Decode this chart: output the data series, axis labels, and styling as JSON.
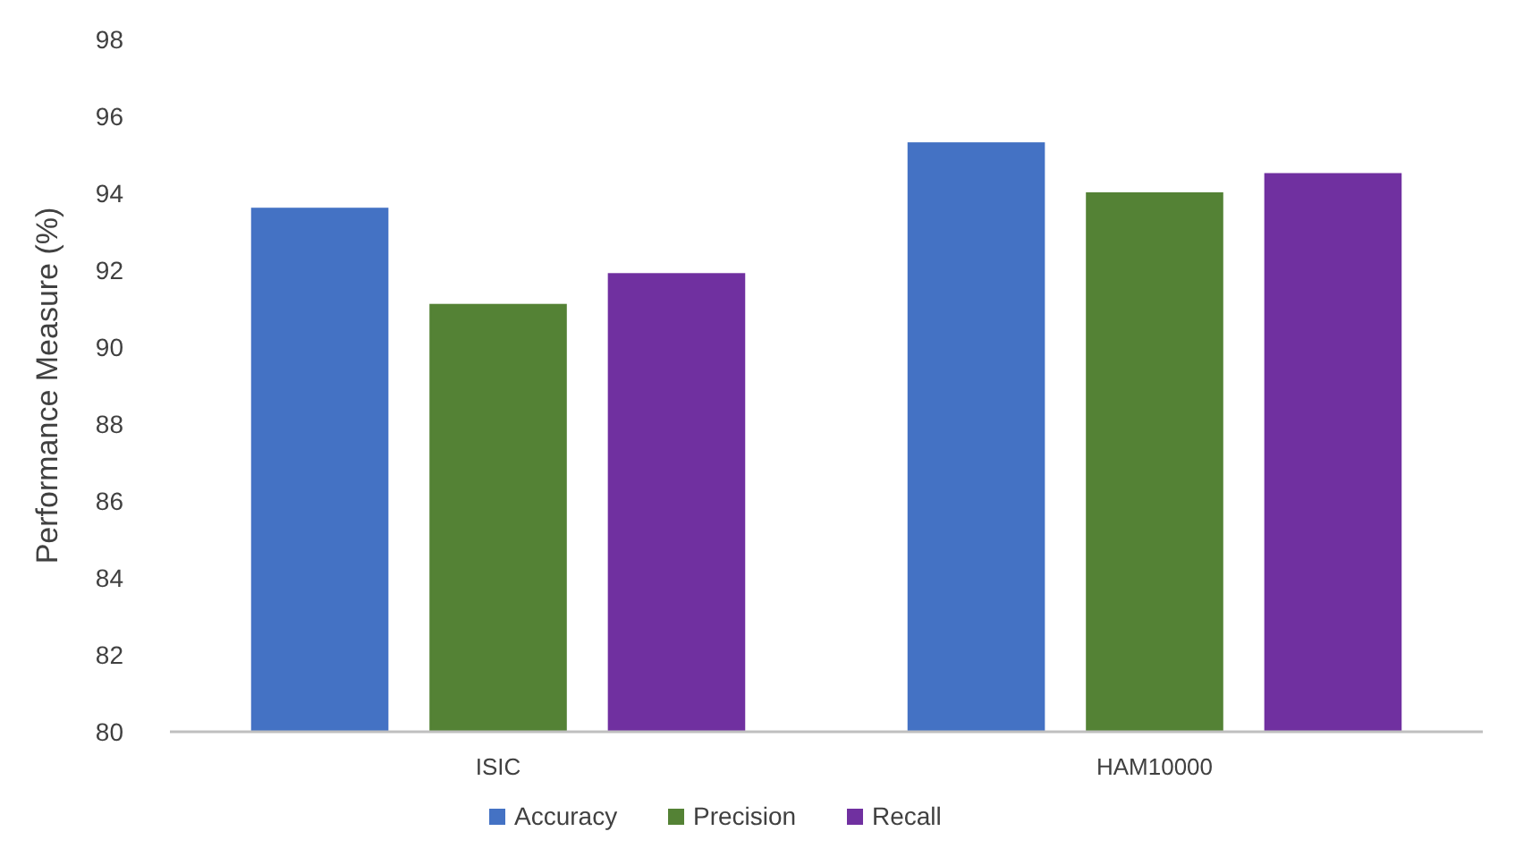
{
  "chart_data": {
    "type": "bar",
    "ylabel": "Performance Measure (%)",
    "categories": [
      "ISIC",
      "HAM10000"
    ],
    "series": [
      {
        "name": "Accuracy",
        "color": "#4472c4",
        "values": [
          93.6,
          95.3
        ]
      },
      {
        "name": "Precision",
        "color": "#548235",
        "values": [
          91.1,
          94.0
        ]
      },
      {
        "name": "Recall",
        "color": "#7030a0",
        "values": [
          91.9,
          94.5
        ]
      }
    ],
    "ylim": [
      80,
      98
    ],
    "yticks": [
      80,
      82,
      84,
      86,
      88,
      90,
      92,
      94,
      96,
      98
    ],
    "grid": false,
    "legend": "bottom"
  }
}
